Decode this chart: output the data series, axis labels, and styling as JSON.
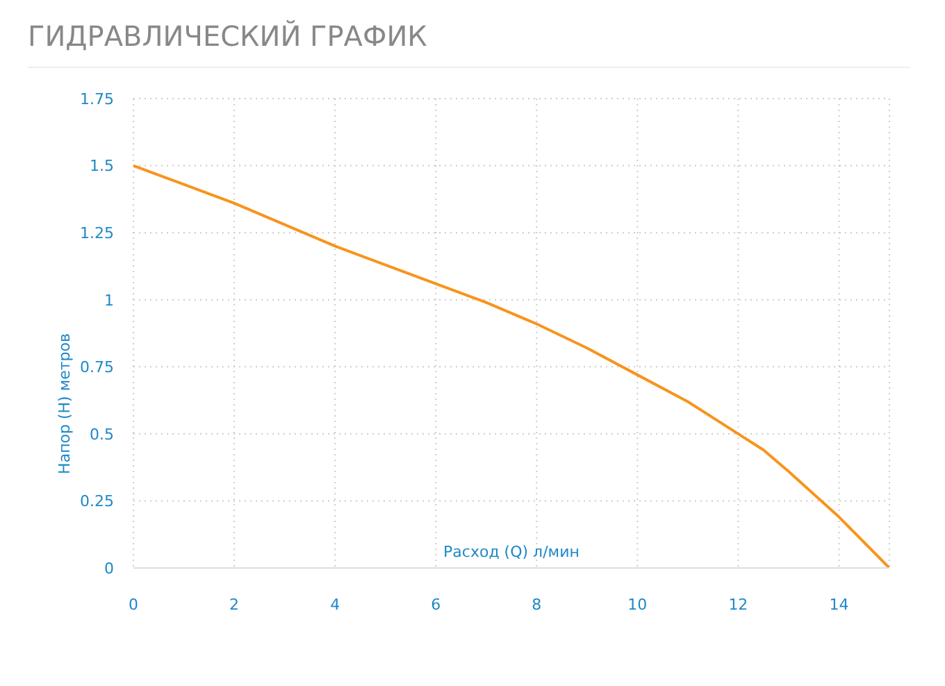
{
  "chart_data": {
    "type": "line",
    "title": "ГИДРАВЛИЧЕСКИЙ ГРАФИК",
    "xlabel": "Расход (Q) л/мин",
    "ylabel": "Напор (H) метров",
    "x": [
      0,
      2,
      4,
      6,
      7,
      8,
      9,
      10,
      11,
      12,
      12.5,
      13,
      14,
      15
    ],
    "series": [
      {
        "color": "#f7941d",
        "values": [
          1.5,
          1.36,
          1.2,
          1.06,
          0.99,
          0.91,
          0.82,
          0.72,
          0.62,
          0.5,
          0.44,
          0.36,
          0.19,
          0
        ]
      }
    ],
    "xlim": [
      0,
      15
    ],
    "xticks": [
      0,
      2,
      4,
      6,
      8,
      10,
      12,
      14
    ],
    "ylim": [
      0,
      1.75
    ],
    "yticks": [
      0,
      0.25,
      0.5,
      0.75,
      1,
      1.25,
      1.5,
      1.75
    ],
    "grid": true,
    "marker": "none",
    "line_style": "solid"
  }
}
